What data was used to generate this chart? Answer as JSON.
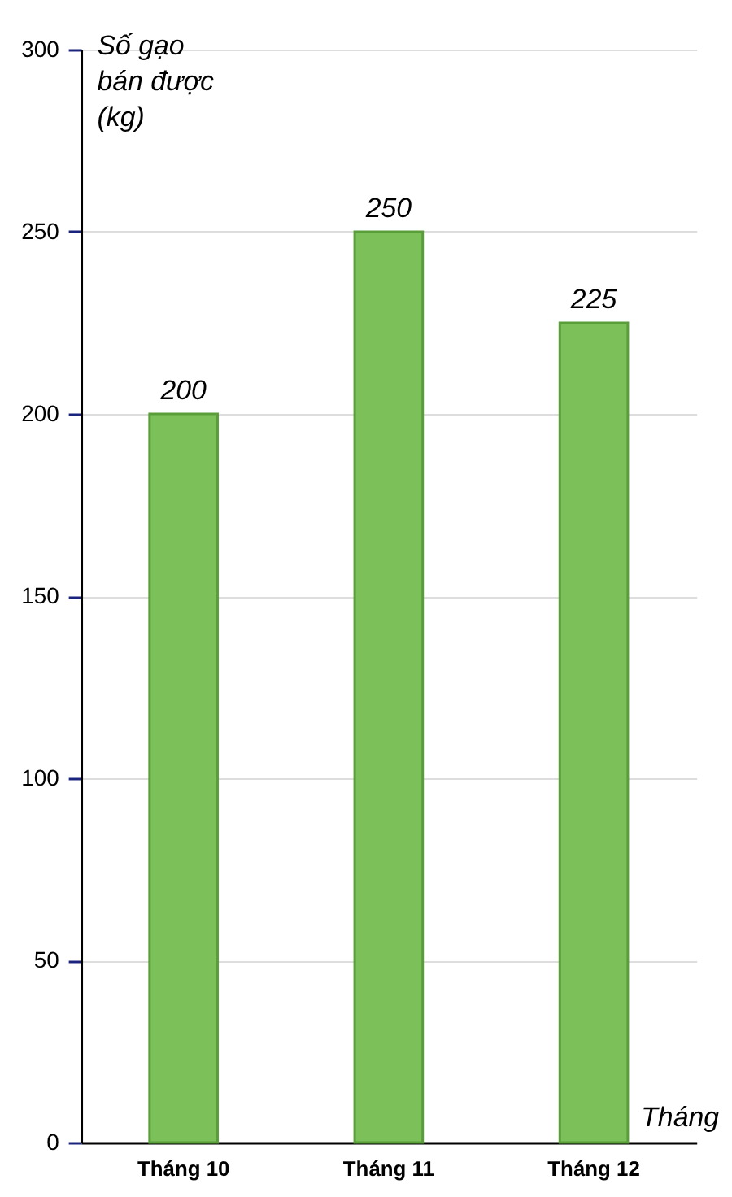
{
  "chart_data": {
    "type": "bar",
    "ylabel": "Số gạo\nbán được\n(kg)",
    "xlabel": "Tháng",
    "categories": [
      "Tháng 10",
      "Tháng 11",
      "Tháng 12"
    ],
    "values": [
      200,
      250,
      225
    ],
    "color": "#7cc05a",
    "ylim": [
      0,
      300
    ],
    "yticks": [
      0,
      50,
      100,
      150,
      200,
      250,
      300
    ],
    "grid": "y",
    "data_labels": true
  }
}
